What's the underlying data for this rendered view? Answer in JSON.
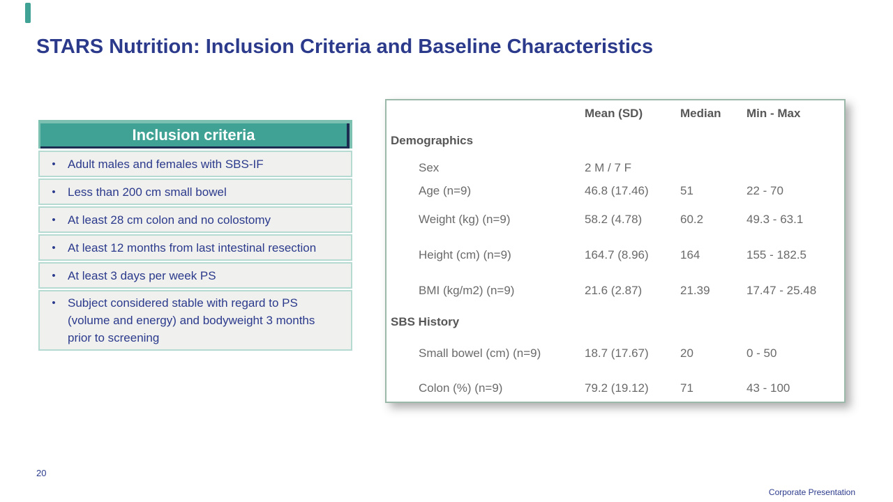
{
  "slide": {
    "title": "STARS Nutrition: Inclusion Criteria and Baseline Characteristics"
  },
  "inclusion": {
    "header": "Inclusion criteria",
    "bullet": "•",
    "items": [
      "Adult males and females with SBS-IF",
      "Less than 200 cm small bowel",
      "At least 28 cm colon and no colostomy",
      "At least 12 months from last intestinal resection",
      "At least 3 days per week PS",
      "Subject considered stable with regard to PS (volume and energy) and bodyweight 3 months prior to screening"
    ]
  },
  "table": {
    "columns": {
      "mean": "Mean (SD)",
      "median": "Median",
      "minmax": "Min - Max"
    },
    "sections": [
      {
        "title": "Demographics",
        "rows": [
          {
            "label": "Sex",
            "mean": "2 M / 7 F",
            "median": "",
            "minmax": ""
          },
          {
            "label": "Age (n=9)",
            "mean": "46.8 (17.46)",
            "median": "51",
            "minmax": "22 - 70"
          },
          {
            "label": "Weight (kg) (n=9)",
            "mean": "58.2 (4.78)",
            "median": "60.2",
            "minmax": "49.3 - 63.1"
          },
          {
            "label": "Height (cm) (n=9)",
            "mean": "164.7 (8.96)",
            "median": "164",
            "minmax": "155 - 182.5"
          },
          {
            "label": "BMI (kg/m2) (n=9)",
            "mean": "21.6 (2.87)",
            "median": "21.39",
            "minmax": "17.47 - 25.48"
          }
        ]
      },
      {
        "title": "SBS History",
        "rows": [
          {
            "label": "Small bowel (cm) (n=9)",
            "mean": "18.7 (17.67)",
            "median": "20",
            "minmax": "0 - 50"
          },
          {
            "label": "Colon (%) (n=9)",
            "mean": "79.2 (19.12)",
            "median": "71",
            "minmax": "43 - 100"
          }
        ]
      }
    ]
  },
  "footer": {
    "page_number": "20",
    "label": "Corporate Presentation"
  },
  "colors": {
    "accent_teal": "#3FA294",
    "header_teal_light": "#7CC0B2",
    "header_shadow_navy": "#1D2D52",
    "navy_text": "#2B3A8C",
    "row_background": "#F0F0EE",
    "row_border": "#B5DAD2",
    "table_border": "#9BB8AB",
    "table_text": "#6A6A6A",
    "table_header_text": "#575757"
  }
}
